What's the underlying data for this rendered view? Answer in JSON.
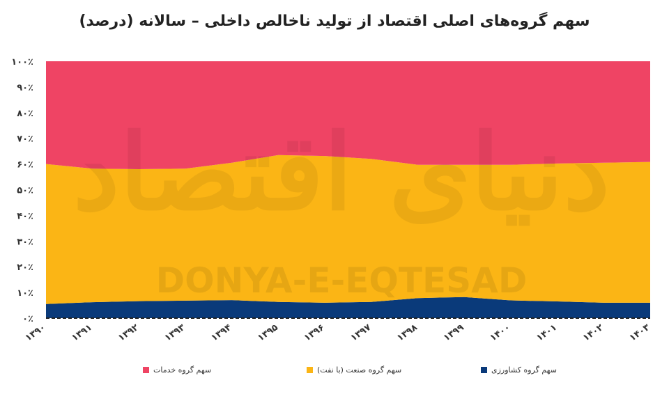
{
  "chart_data": {
    "type": "area",
    "stacked": true,
    "title": "سهم گروه‌های اصلی اقتصاد از تولید ناخالص داخلی – سالانه (درصد)",
    "categories": [
      "۱۳۹۰",
      "۱۳۹۱",
      "۱۳۹۲",
      "۱۳۹۳",
      "۱۳۹۴",
      "۱۳۹۵",
      "۱۳۹۶",
      "۱۳۹۷",
      "۱۳۹۸",
      "۱۳۹۹",
      "۱۴۰۰",
      "۱۴۰۱",
      "۱۴۰۲",
      "۱۴۰۳"
    ],
    "ylim": [
      0,
      100
    ],
    "yticks": [
      "۰٪",
      "۱۰٪",
      "۲۰٪",
      "۳۰٪",
      "۴۰٪",
      "۵۰٪",
      "۶۰٪",
      "۷۰٪",
      "۸۰٪",
      "۹۰٪",
      "۱۰۰٪"
    ],
    "series": [
      {
        "name": "سهم گروه کشاورزی",
        "color": "#0a3a7a",
        "values": [
          5.5,
          6.2,
          6.6,
          6.8,
          7.0,
          6.3,
          6.0,
          6.3,
          7.8,
          8.2,
          6.9,
          6.5,
          6.0,
          6.0
        ]
      },
      {
        "name": "سهم گروه صنعت (با نفت)",
        "color": "#fbb515",
        "values": [
          54.5,
          52.0,
          51.4,
          51.4,
          53.5,
          57.2,
          57.1,
          55.7,
          51.9,
          51.5,
          52.8,
          53.7,
          54.5,
          54.8
        ]
      },
      {
        "name": "سهم گروه خدمات",
        "color": "#ef4464",
        "values": [
          40.0,
          41.8,
          42.0,
          41.8,
          39.5,
          36.5,
          36.9,
          38.0,
          40.3,
          40.3,
          40.3,
          39.8,
          39.5,
          39.2
        ]
      }
    ],
    "grid": false,
    "legend_position": "bottom"
  },
  "watermark": {
    "persian": "دنیای اقتصاد",
    "latin": "DONYA-E-EQTESAD"
  }
}
